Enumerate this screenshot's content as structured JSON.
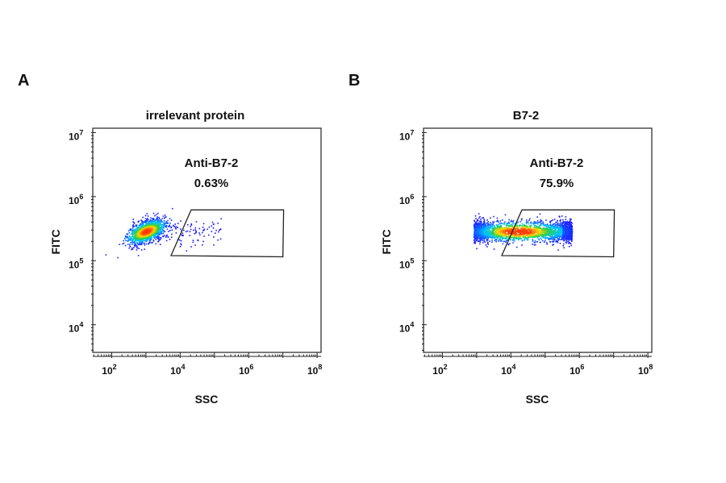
{
  "chart_data": [
    {
      "type": "scatter",
      "panel_letter": "A",
      "title": "irrelevant protein",
      "xlabel": "SSC",
      "ylabel": "FITC",
      "x_scale": "log",
      "y_scale": "log",
      "xlim": [
        28,
        130000000
      ],
      "ylim": [
        3700,
        11700000
      ],
      "x_ticks": [
        {
          "base": "10",
          "exp": "2",
          "value": 100
        },
        {
          "base": "10",
          "exp": "4",
          "value": 10000
        },
        {
          "base": "10",
          "exp": "6",
          "value": 1000000
        },
        {
          "base": "10",
          "exp": "8",
          "value": 100000000
        }
      ],
      "y_ticks": [
        {
          "base": "10",
          "exp": "4",
          "value": 10000
        },
        {
          "base": "10",
          "exp": "5",
          "value": 100000
        },
        {
          "base": "10",
          "exp": "6",
          "value": 1000000
        },
        {
          "base": "10",
          "exp": "7",
          "value": 10000000
        }
      ],
      "grid": false,
      "gate": {
        "name": "Anti-B7-2",
        "percent": "0.63%",
        "polygon": [
          [
            5400,
            120000
          ],
          [
            21000,
            620000
          ],
          [
            10500000,
            620000
          ],
          [
            10000000,
            115000
          ]
        ]
      },
      "population": {
        "center": [
          1000,
          290000
        ],
        "log_spread": [
          0.28,
          0.09
        ],
        "tail_to_x": 200000,
        "colormap": [
          "#1a1aff",
          "#00c8ff",
          "#2ecc40",
          "#ffdc00",
          "#ff3b00"
        ]
      }
    },
    {
      "type": "scatter",
      "panel_letter": "B",
      "title": "B7-2",
      "xlabel": "SSC",
      "ylabel": "FITC",
      "x_scale": "log",
      "y_scale": "log",
      "xlim": [
        28,
        130000000
      ],
      "ylim": [
        3700,
        11700000
      ],
      "x_ticks": [
        {
          "base": "10",
          "exp": "2",
          "value": 100
        },
        {
          "base": "10",
          "exp": "4",
          "value": 10000
        },
        {
          "base": "10",
          "exp": "6",
          "value": 1000000
        },
        {
          "base": "10",
          "exp": "8",
          "value": 100000000
        }
      ],
      "y_ticks": [
        {
          "base": "10",
          "exp": "4",
          "value": 10000
        },
        {
          "base": "10",
          "exp": "5",
          "value": 100000
        },
        {
          "base": "10",
          "exp": "6",
          "value": 1000000
        },
        {
          "base": "10",
          "exp": "7",
          "value": 10000000
        }
      ],
      "grid": false,
      "gate": {
        "name": "Anti-B7-2",
        "percent": "75.9%",
        "polygon": [
          [
            5400,
            120000
          ],
          [
            21000,
            620000
          ],
          [
            10500000,
            620000
          ],
          [
            10000000,
            115000
          ]
        ]
      },
      "population": {
        "center": [
          16000,
          290000
        ],
        "log_range_x": [
          800,
          600000
        ],
        "log_spread": [
          0.7,
          0.09
        ],
        "colormap": [
          "#1a1aff",
          "#00c8ff",
          "#2ecc40",
          "#ffdc00",
          "#ff3b00"
        ]
      }
    }
  ]
}
